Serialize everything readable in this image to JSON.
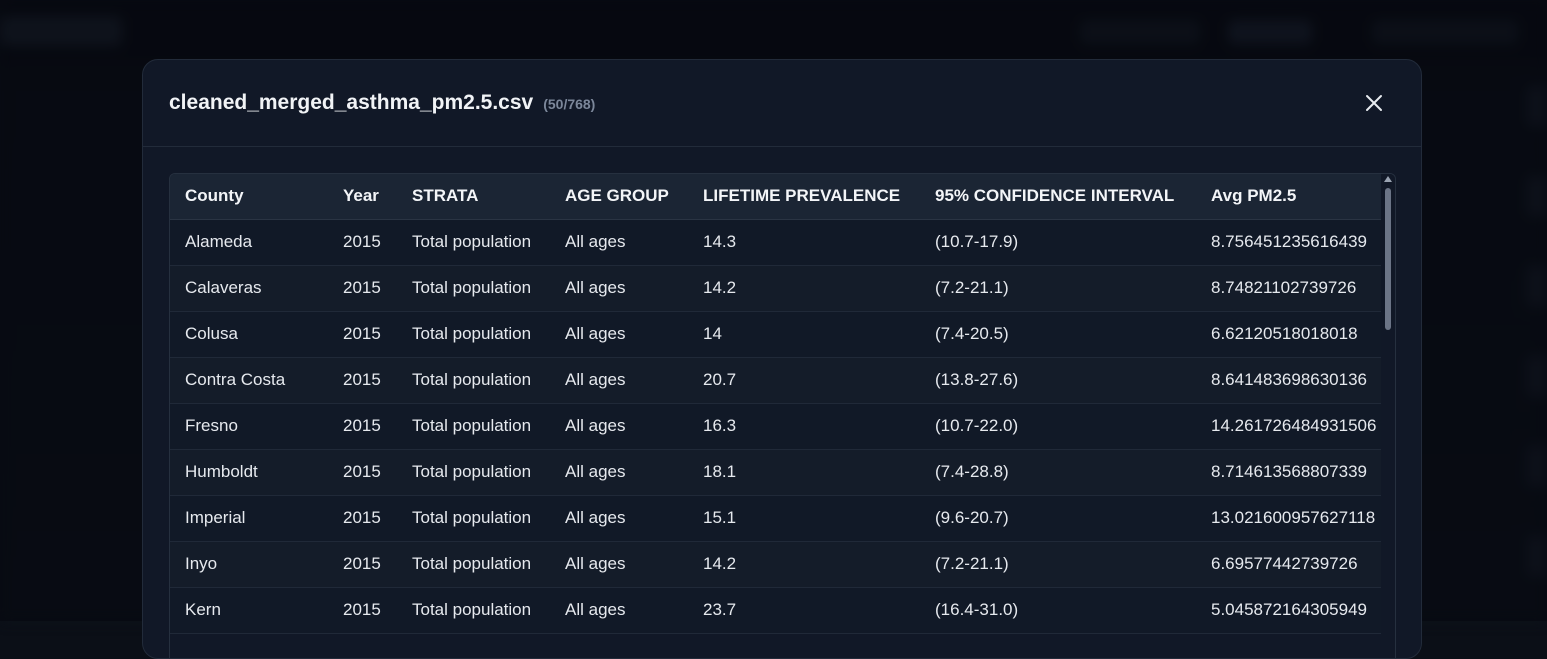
{
  "modal": {
    "title": "cleaned_merged_asthma_pm2.5.csv",
    "count": "(50/768)"
  },
  "table": {
    "headers": [
      "County",
      "Year",
      "STRATA",
      "AGE GROUP",
      "LIFETIME PREVALENCE",
      "95% CONFIDENCE INTERVAL",
      "Avg PM2.5"
    ],
    "rows": [
      [
        "Alameda",
        "2015",
        "Total population",
        "All ages",
        "14.3",
        "(10.7-17.9)",
        "8.756451235616439"
      ],
      [
        "Calaveras",
        "2015",
        "Total population",
        "All ages",
        "14.2",
        "(7.2-21.1)",
        "8.74821102739726"
      ],
      [
        "Colusa",
        "2015",
        "Total population",
        "All ages",
        "14",
        "(7.4-20.5)",
        "6.62120518018018"
      ],
      [
        "Contra Costa",
        "2015",
        "Total population",
        "All ages",
        "20.7",
        "(13.8-27.6)",
        "8.641483698630136"
      ],
      [
        "Fresno",
        "2015",
        "Total population",
        "All ages",
        "16.3",
        "(10.7-22.0)",
        "14.261726484931506"
      ],
      [
        "Humboldt",
        "2015",
        "Total population",
        "All ages",
        "18.1",
        "(7.4-28.8)",
        "8.714613568807339"
      ],
      [
        "Imperial",
        "2015",
        "Total population",
        "All ages",
        "15.1",
        "(9.6-20.7)",
        "13.021600957627118"
      ],
      [
        "Inyo",
        "2015",
        "Total population",
        "All ages",
        "14.2",
        "(7.2-21.1)",
        "6.69577442739726"
      ],
      [
        "Kern",
        "2015",
        "Total population",
        "All ages",
        "23.7",
        "(16.4-31.0)",
        "5.045872164305949"
      ]
    ]
  },
  "icons": {
    "close": "close-icon",
    "scroll_up": "chevron-up-icon"
  }
}
